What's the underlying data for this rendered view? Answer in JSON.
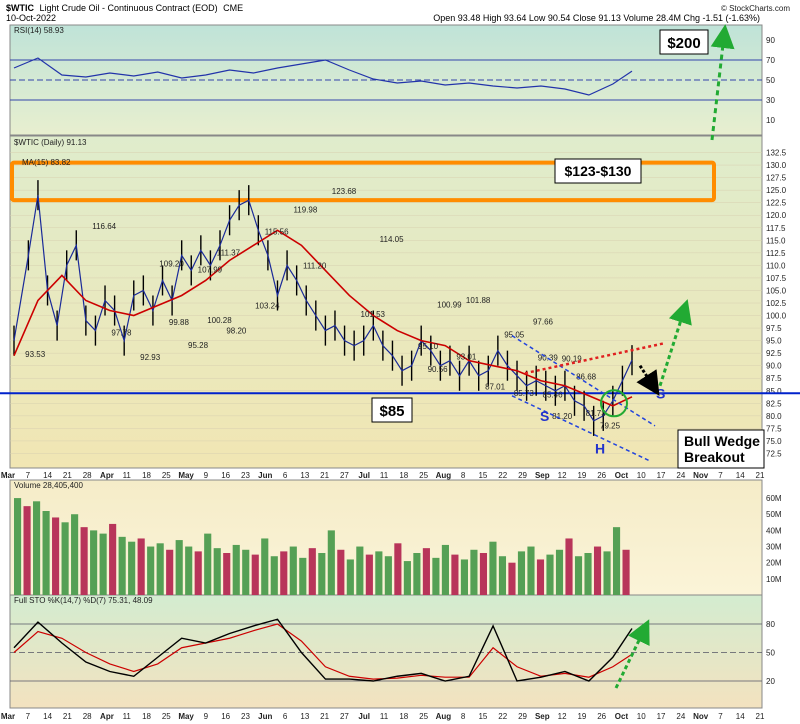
{
  "header": {
    "symbol": "$WTIC",
    "description": "Light Crude Oil - Continuous Contract (EOD)",
    "exchange": "CME",
    "date": "10-Oct-2022",
    "stats": "Open 93.48  High 93.64  Low 90.54  Close 91.13  Volume 28.4M  Chg -1.51 (-1.63%)",
    "watermark": "© StockCharts.com"
  },
  "chart_data": [
    {
      "panel": "rsi",
      "type": "line",
      "legend": "RSI(14) 58.93",
      "ylim": [
        0,
        100
      ],
      "yticks": [
        "90",
        "70",
        "50",
        "30",
        "10"
      ],
      "guides": [
        70,
        50,
        30
      ],
      "x": [
        0,
        5,
        10,
        15,
        20,
        25,
        30,
        35,
        40,
        45,
        50,
        55,
        60,
        65,
        70,
        75,
        80,
        85,
        90,
        95,
        100,
        105,
        110,
        115,
        120,
        125,
        129
      ],
      "values": [
        62,
        72,
        55,
        53,
        57,
        54,
        58,
        52,
        55,
        60,
        57,
        62,
        66,
        70,
        60,
        51,
        47,
        49,
        45,
        47,
        44,
        42,
        44,
        41,
        35,
        46,
        58.9
      ]
    },
    {
      "panel": "price",
      "type": "line",
      "title": "$WTIC (Daily) 91.13",
      "legend": [
        "MA(15) 83.82"
      ],
      "ylim": [
        70,
        135
      ],
      "yticks": [
        "132.5",
        "130.0",
        "127.5",
        "125.0",
        "122.5",
        "120.0",
        "117.5",
        "115.0",
        "112.5",
        "110.0",
        "107.5",
        "105.0",
        "102.5",
        "100.0",
        "97.5",
        "95.0",
        "92.5",
        "90.0",
        "87.5",
        "85.0",
        "82.5",
        "80.0",
        "77.5",
        "75.0",
        "72.5"
      ],
      "series": [
        {
          "name": "$WTIC",
          "x": [
            0,
            3,
            5,
            7,
            9,
            11,
            13,
            15,
            17,
            19,
            21,
            23,
            25,
            27,
            29,
            31,
            33,
            35,
            37,
            39,
            41,
            43,
            45,
            47,
            49,
            51,
            53,
            55,
            57,
            59,
            61,
            63,
            65,
            67,
            69,
            71,
            73,
            75,
            77,
            79,
            81,
            83,
            85,
            87,
            89,
            91,
            93,
            95,
            97,
            99,
            101,
            103,
            105,
            107,
            109,
            111,
            113,
            115,
            117,
            119,
            121,
            123,
            125,
            127,
            129
          ],
          "values": [
            95,
            112,
            124,
            105,
            98,
            110,
            114,
            99,
            97,
            103,
            101,
            95,
            104,
            105,
            101,
            107,
            103,
            112,
            109,
            113,
            110,
            114,
            119,
            122,
            123,
            117,
            112,
            104,
            110,
            107,
            103,
            100,
            97,
            98,
            95,
            94,
            95,
            98,
            94,
            92,
            89,
            90,
            95,
            93,
            90,
            91,
            88,
            91,
            88,
            89,
            93,
            90,
            88,
            86,
            87,
            86,
            85,
            86,
            83,
            82,
            79,
            80,
            83,
            87,
            91.1
          ]
        },
        {
          "name": "MA(15)",
          "x": [
            0,
            5,
            10,
            15,
            20,
            25,
            30,
            35,
            40,
            45,
            50,
            55,
            60,
            65,
            70,
            75,
            80,
            85,
            90,
            95,
            100,
            105,
            110,
            115,
            120,
            125,
            129
          ],
          "values": [
            92,
            103,
            108,
            103,
            101,
            100,
            102,
            104,
            107,
            111,
            114,
            117,
            114,
            109,
            104,
            100,
            97,
            95,
            94,
            91,
            90,
            89,
            87,
            86,
            84,
            82,
            83.8
          ]
        }
      ],
      "hline": 84.5,
      "price_labels": [
        "93.53",
        "116.64",
        "97.78",
        "92.93",
        "109.20",
        "99.88",
        "95.28",
        "107.99",
        "100.28",
        "111.37",
        "98.20",
        "103.24",
        "115.56",
        "119.98",
        "111.20",
        "123.68",
        "101.53",
        "114.05",
        "95.10",
        "90.56",
        "100.99",
        "93.01",
        "101.88",
        "87.01",
        "95.05",
        "85.73",
        "97.66",
        "90.39",
        "85.46",
        "81.20",
        "90.19",
        "86.68",
        "81.73",
        "79.25"
      ],
      "callouts": {
        "target_top": "$200",
        "zone": "$123-$130",
        "support": "$85",
        "wedge": "Bull Wedge\nBreakout"
      },
      "pattern_marks": [
        "S",
        "H",
        "S"
      ]
    },
    {
      "panel": "volume",
      "type": "bar",
      "legend": "Volume 28,405,400",
      "yticks": [
        "60M",
        "50M",
        "40M",
        "30M",
        "20M",
        "10M"
      ],
      "ylim": [
        0,
        65
      ],
      "values": [
        60,
        55,
        58,
        52,
        48,
        45,
        50,
        42,
        40,
        38,
        44,
        36,
        33,
        35,
        30,
        32,
        28,
        34,
        30,
        27,
        38,
        29,
        26,
        31,
        28,
        25,
        35,
        24,
        27,
        30,
        23,
        29,
        26,
        40,
        28,
        22,
        30,
        25,
        27,
        24,
        32,
        21,
        26,
        29,
        23,
        31,
        25,
        22,
        28,
        26,
        33,
        24,
        20,
        27,
        30,
        22,
        25,
        28,
        35,
        24,
        26,
        30,
        27,
        42,
        28
      ]
    },
    {
      "panel": "stochastic",
      "type": "line",
      "legend": "Full STO %K(14,7) %D(7) 75.31, 48.09",
      "ylim": [
        0,
        100
      ],
      "yticks": [
        "80",
        "50",
        "20"
      ],
      "guides": [
        80,
        50,
        20
      ],
      "series": [
        {
          "name": "%K",
          "x": [
            0,
            5,
            10,
            15,
            20,
            25,
            30,
            35,
            40,
            45,
            50,
            55,
            60,
            65,
            70,
            75,
            80,
            85,
            90,
            95,
            100,
            105,
            110,
            115,
            120,
            125,
            129
          ],
          "values": [
            55,
            82,
            60,
            40,
            30,
            25,
            45,
            65,
            60,
            70,
            78,
            85,
            50,
            22,
            22,
            20,
            25,
            28,
            20,
            25,
            78,
            20,
            24,
            30,
            20,
            45,
            75.3
          ]
        },
        {
          "name": "%D",
          "x": [
            0,
            5,
            10,
            15,
            20,
            25,
            30,
            35,
            40,
            45,
            50,
            55,
            60,
            65,
            70,
            75,
            80,
            85,
            90,
            95,
            100,
            105,
            110,
            115,
            120,
            125,
            129
          ],
          "values": [
            50,
            72,
            65,
            50,
            38,
            30,
            38,
            55,
            60,
            65,
            73,
            80,
            62,
            35,
            25,
            22,
            23,
            26,
            24,
            24,
            55,
            35,
            25,
            28,
            24,
            35,
            48.1
          ]
        }
      ]
    }
  ],
  "x_axis": {
    "labels": [
      "Mar",
      "7",
      "14",
      "21",
      "28",
      "Apr",
      "11",
      "18",
      "25",
      "May",
      "9",
      "16",
      "23",
      "Jun",
      "6",
      "13",
      "21",
      "27",
      "Jul",
      "11",
      "18",
      "25",
      "Aug",
      "8",
      "15",
      "22",
      "29",
      "Sep",
      "12",
      "19",
      "26",
      "Oct",
      "10",
      "17",
      "24",
      "Nov",
      "7",
      "14",
      "21"
    ],
    "bold": [
      "Mar",
      "Apr",
      "May",
      "Jun",
      "Jul",
      "Aug",
      "Sep",
      "Oct",
      "Nov"
    ]
  },
  "colors": {
    "price": "#000000",
    "ma": "#cc0000",
    "rsi": "#2233aa",
    "support": "#0022cc",
    "zone": "#ff8c00",
    "arrow": "#22aa33",
    "vol_up": "#55a055",
    "vol_down": "#b8355a",
    "wedge": "#2244dd",
    "resist": "#e02020"
  }
}
